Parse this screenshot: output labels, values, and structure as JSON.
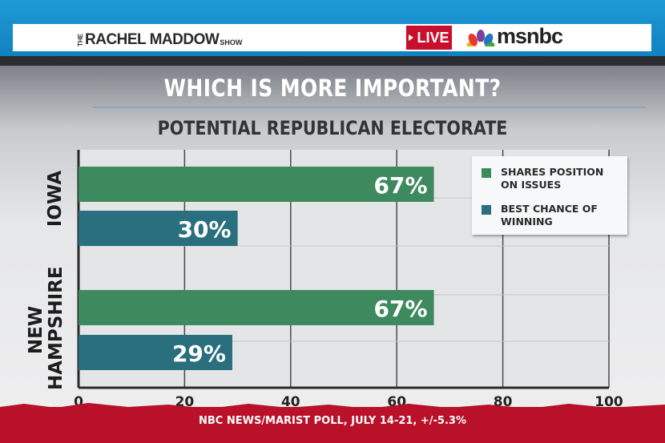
{
  "header": {
    "show_prefix": "THE",
    "show_name": "RACHEL MADDOW",
    "show_suffix": "SHOW",
    "live_label": "LIVE",
    "network": "msnbc"
  },
  "chart_data": {
    "type": "bar",
    "orientation": "horizontal",
    "title": "WHICH IS MORE IMPORTANT?",
    "subtitle": "POTENTIAL REPUBLICAN ELECTORATE",
    "categories": [
      "IOWA",
      "NEW HAMPSHIRE"
    ],
    "series": [
      {
        "name": "SHARES POSITION ON ISSUES",
        "values": [
          67,
          67
        ],
        "labels": [
          "67%",
          "67%"
        ],
        "color": "#3e8a5f"
      },
      {
        "name": "BEST CHANCE OF WINNING",
        "values": [
          30,
          29
        ],
        "labels": [
          "30%",
          "29%"
        ],
        "color": "#2a6f7e"
      }
    ],
    "xlim": [
      0,
      100
    ],
    "xticks": [
      "0",
      "20",
      "40",
      "60",
      "80",
      "100"
    ],
    "xlabel": "",
    "ylabel": "",
    "grid": true,
    "legend": "top-right",
    "source": "NBC NEWS/MARIST POLL, JULY 14-21, +/-5.3%"
  }
}
